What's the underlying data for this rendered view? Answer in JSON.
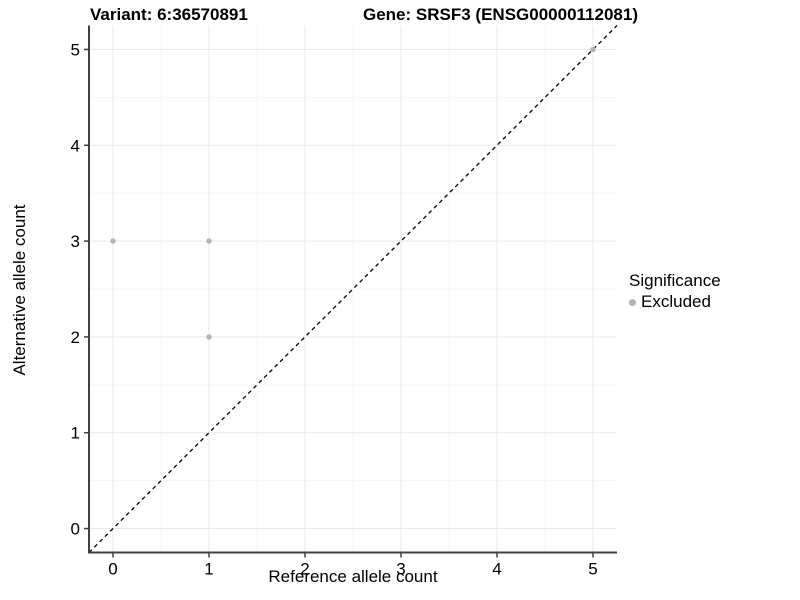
{
  "figure": {
    "title_left": "Variant: 6:36570891",
    "title_right": "Gene: SRSF3 (ENSG00000112081)"
  },
  "chart_data": {
    "type": "scatter",
    "title": "Variant: 6:36570891 | Gene: SRSF3 (ENSG00000112081)",
    "xlabel": "Reference allele count",
    "ylabel": "Alternative allele count",
    "xlim": [
      -0.25,
      5.25
    ],
    "ylim": [
      -0.25,
      5.25
    ],
    "xticks": [
      "0",
      "1",
      "2",
      "3",
      "4",
      "5"
    ],
    "yticks": [
      "0",
      "1",
      "2",
      "3",
      "4",
      "5"
    ],
    "minor_step": 0.5,
    "grid": "major+minor",
    "series": [
      {
        "name": "Excluded",
        "color": "#b3b3b3",
        "points": [
          [
            0,
            3
          ],
          [
            1,
            3
          ],
          [
            1,
            2
          ],
          [
            5,
            5
          ]
        ]
      }
    ],
    "reference_line": {
      "type": "identity",
      "from": -0.25,
      "to": 5.25,
      "style": "dashed",
      "color": "#000000"
    },
    "legend": {
      "title": "Significance",
      "position": "right",
      "items": [
        {
          "label": "Excluded",
          "color": "#b3b3b3"
        }
      ]
    },
    "colors": {
      "point": "#b3b3b3",
      "axis_line": "#404040",
      "grid_major": "#e9e9e9",
      "grid_minor": "#f5f5f5",
      "tick_text": "#000000",
      "background": "#ffffff"
    }
  }
}
